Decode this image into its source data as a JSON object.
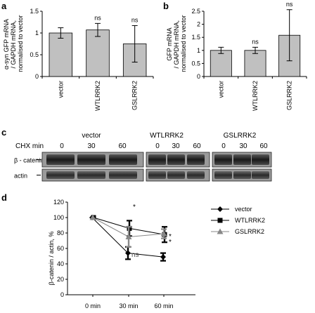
{
  "panels": {
    "a": {
      "letter": "a"
    },
    "b": {
      "letter": "b"
    },
    "c": {
      "letter": "c"
    },
    "d": {
      "letter": "d"
    }
  },
  "chart_data": [
    {
      "panel": "a",
      "type": "bar",
      "ylabel_lines": [
        "α-syn GFP mRNA",
        "/ GAPDH mRNA,",
        "normalised to vector"
      ],
      "categories": [
        "vector",
        "WTLRRK2",
        "GSLRRK2"
      ],
      "values": [
        1.0,
        1.07,
        0.75
      ],
      "errors": [
        0.12,
        0.15,
        0.42
      ],
      "annotations": [
        "",
        "ns",
        "ns"
      ],
      "ylim": [
        0,
        1.5
      ],
      "yticks": [
        "0",
        "0.5",
        "1",
        "1.5"
      ],
      "colors": {
        "bar": "#c0c0c0",
        "edge": "#000000"
      }
    },
    {
      "panel": "b",
      "type": "bar",
      "ylabel_lines": [
        "GFP mRNA",
        "/ GAPDH mRNA,",
        "normalised to vector"
      ],
      "categories": [
        "vector",
        "WTLRRK2",
        "GSLRRK2"
      ],
      "values": [
        1.0,
        1.0,
        1.58
      ],
      "errors": [
        0.12,
        0.12,
        0.98
      ],
      "annotations": [
        "",
        "ns",
        "ns"
      ],
      "ylim": [
        0,
        2.5
      ],
      "yticks": [
        "0",
        "0.5",
        "1",
        "1.5",
        "2",
        "2.5"
      ],
      "colors": {
        "bar": "#c0c0c0",
        "edge": "#000000"
      }
    },
    {
      "panel": "d",
      "type": "line",
      "ylabel": "β-catenin / actin, %",
      "categories": [
        "0 min",
        "30 min",
        "60 min"
      ],
      "ylim": [
        0,
        120
      ],
      "yticks": [
        "0",
        "20",
        "40",
        "60",
        "80",
        "100",
        "120"
      ],
      "series": [
        {
          "name": "vector",
          "marker": "diamond",
          "color": "#000000",
          "values": [
            100,
            54,
            49
          ],
          "errors": [
            0,
            8,
            5
          ]
        },
        {
          "name": "WTLRRK2",
          "marker": "square",
          "color": "#000000",
          "values": [
            100,
            86,
            78
          ],
          "errors": [
            0,
            10,
            10
          ]
        },
        {
          "name": "GSLRRK2",
          "marker": "triangle",
          "color": "#888888",
          "values": [
            100,
            75,
            79
          ],
          "errors": [
            0,
            13,
            6
          ]
        }
      ],
      "annotations": [
        {
          "text": "*",
          "category": "30 min",
          "series": "WTLRRK2"
        },
        {
          "text": "ns",
          "category": "30 min",
          "series": "GSLRRK2"
        },
        {
          "text": "*",
          "category": "60 min",
          "series": "WTLRRK2"
        },
        {
          "text": "*",
          "category": "60 min",
          "series": "GSLRRK2"
        }
      ],
      "legend": "right"
    }
  ],
  "blot": {
    "cond_label": "CHX min",
    "groups": [
      {
        "name": "vector",
        "times": [
          "0",
          "30",
          "60"
        ]
      },
      {
        "name": "WTLRRK2",
        "times": [
          "0",
          "30",
          "60"
        ]
      },
      {
        "name": "GSLRRK2",
        "times": [
          "0",
          "30",
          "60"
        ]
      }
    ],
    "rows": [
      {
        "label": "β - catenin"
      },
      {
        "label": "actin"
      }
    ]
  }
}
